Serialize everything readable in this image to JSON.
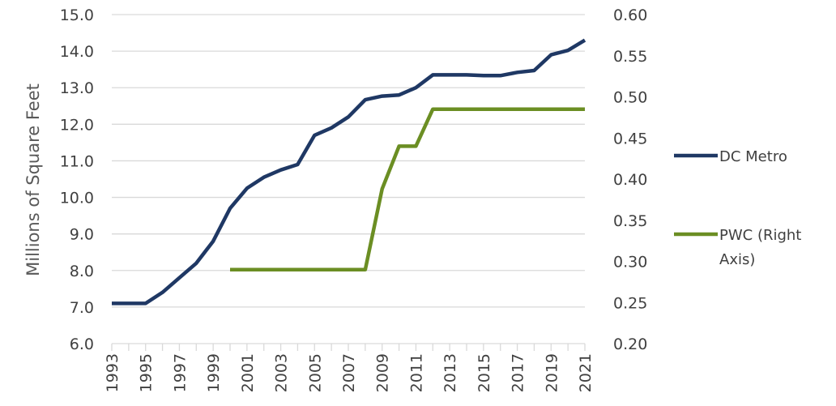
{
  "chart_data": {
    "type": "line",
    "title": "",
    "xlabel": "",
    "ylabel": "Millions of Square Feet",
    "ylim": [
      6.0,
      15.0
    ],
    "y2lim": [
      0.2,
      0.6
    ],
    "y_ticks": [
      "6.0",
      "7.0",
      "8.0",
      "9.0",
      "10.0",
      "11.0",
      "12.0",
      "13.0",
      "14.0",
      "15.0"
    ],
    "y2_ticks": [
      "0.20",
      "0.25",
      "0.30",
      "0.35",
      "0.40",
      "0.45",
      "0.50",
      "0.55",
      "0.60"
    ],
    "x_ticks": [
      "1993",
      "1995",
      "1997",
      "1999",
      "2001",
      "2003",
      "2005",
      "2007",
      "2009",
      "2011",
      "2013",
      "2015",
      "2017",
      "2019",
      "2021"
    ],
    "x": [
      1993,
      1994,
      1995,
      1996,
      1997,
      1998,
      1999,
      2000,
      2001,
      2002,
      2003,
      2004,
      2005,
      2006,
      2007,
      2008,
      2009,
      2010,
      2011,
      2012,
      2013,
      2014,
      2015,
      2016,
      2017,
      2018,
      2019,
      2020,
      2021
    ],
    "grid": "horizontal",
    "legend_position": "right",
    "series": [
      {
        "name": "DC Metro",
        "axis": "left",
        "color": "#1f3864",
        "values": [
          7.1,
          7.1,
          7.1,
          7.4,
          7.8,
          8.2,
          8.8,
          9.7,
          10.25,
          10.55,
          10.75,
          10.9,
          11.7,
          11.9,
          12.2,
          12.67,
          12.77,
          12.8,
          13.0,
          13.35,
          13.35,
          13.35,
          13.33,
          13.33,
          13.42,
          13.47,
          13.9,
          14.02,
          14.3
        ]
      },
      {
        "name": "PWC (Right Axis)",
        "axis": "right",
        "color": "#6b8e23",
        "values": [
          null,
          null,
          null,
          null,
          null,
          null,
          null,
          0.29,
          0.29,
          0.29,
          0.29,
          0.29,
          0.29,
          0.29,
          0.29,
          0.29,
          0.388,
          0.44,
          0.44,
          0.485,
          0.485,
          0.485,
          0.485,
          0.485,
          0.485,
          0.485,
          0.485,
          0.485,
          0.485
        ]
      }
    ],
    "legend": [
      {
        "label_lines": [
          "DC Metro"
        ],
        "color": "#1f3864"
      },
      {
        "label_lines": [
          "PWC (Right",
          "Axis)"
        ],
        "color": "#6b8e23"
      }
    ]
  }
}
